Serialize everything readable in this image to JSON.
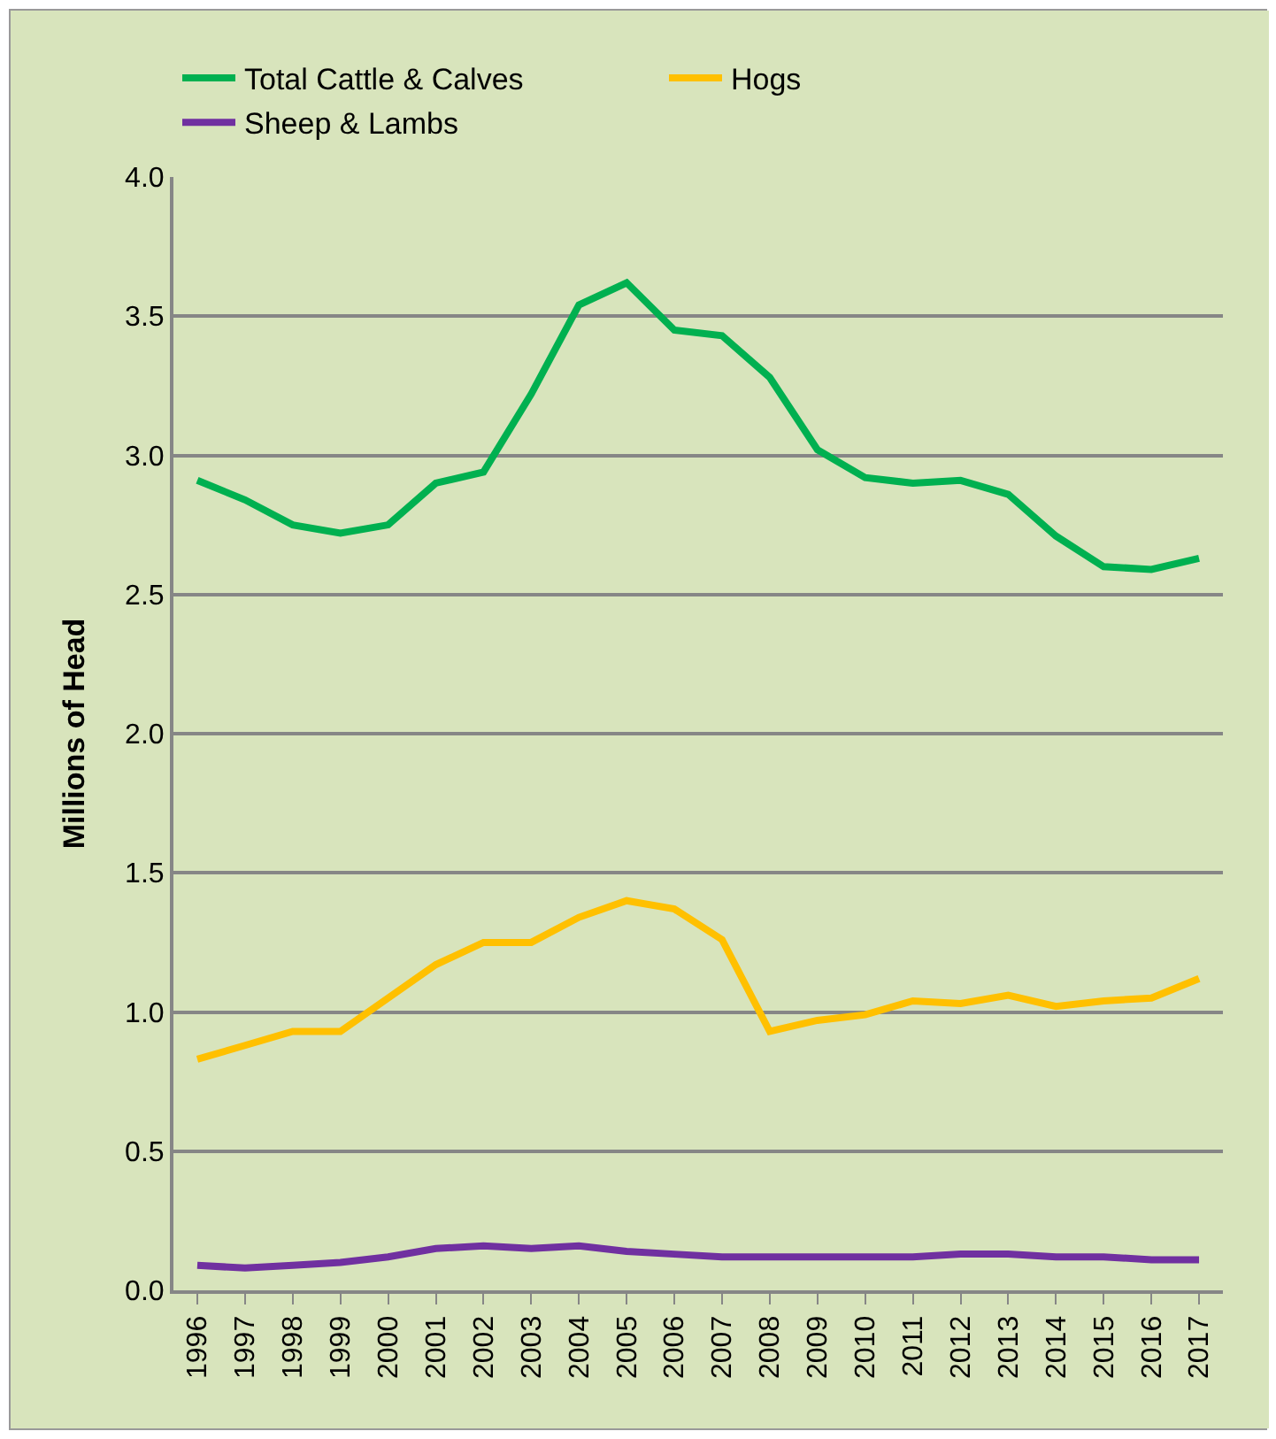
{
  "chart_data": {
    "type": "line",
    "ylabel": "Millions of Head",
    "categories": [
      "1996",
      "1997",
      "1998",
      "1999",
      "2000",
      "2001",
      "2002",
      "2003",
      "2004",
      "2005",
      "2006",
      "2007",
      "2008",
      "2009",
      "2010",
      "2011",
      "2012",
      "2013",
      "2014",
      "2015",
      "2016",
      "2017"
    ],
    "series": [
      {
        "name": "Total Cattle & Calves",
        "color": "#00b050",
        "values": [
          2.91,
          2.84,
          2.75,
          2.72,
          2.75,
          2.9,
          2.94,
          3.22,
          3.54,
          3.62,
          3.45,
          3.43,
          3.28,
          3.02,
          2.92,
          2.9,
          2.91,
          2.86,
          2.71,
          2.6,
          2.59,
          2.63
        ]
      },
      {
        "name": "Hogs",
        "color": "#ffc000",
        "values": [
          0.83,
          0.88,
          0.93,
          0.93,
          1.05,
          1.17,
          1.25,
          1.25,
          1.34,
          1.4,
          1.37,
          1.26,
          0.93,
          0.97,
          0.99,
          1.04,
          1.03,
          1.06,
          1.02,
          1.04,
          1.05,
          1.12
        ]
      },
      {
        "name": "Sheep & Lambs",
        "color": "#7030a0",
        "values": [
          0.09,
          0.08,
          0.09,
          0.1,
          0.12,
          0.15,
          0.16,
          0.15,
          0.16,
          0.14,
          0.13,
          0.12,
          0.12,
          0.12,
          0.12,
          0.12,
          0.13,
          0.13,
          0.12,
          0.12,
          0.11,
          0.11
        ]
      }
    ],
    "ylim": [
      0,
      4
    ],
    "yticks": [
      {
        "value": 0,
        "label": "0.0"
      },
      {
        "value": 0.5,
        "label": "0.5"
      },
      {
        "value": 1,
        "label": "1.0"
      },
      {
        "value": 1.5,
        "label": "1.5"
      },
      {
        "value": 2,
        "label": "2.0"
      },
      {
        "value": 2.5,
        "label": "2.5"
      },
      {
        "value": 3,
        "label": "3.0"
      },
      {
        "value": 3.5,
        "label": "3.5"
      },
      {
        "value": 4,
        "label": "4.0"
      }
    ],
    "grid": "y",
    "legend": "top left",
    "marker": "none",
    "line_style": "solid"
  }
}
